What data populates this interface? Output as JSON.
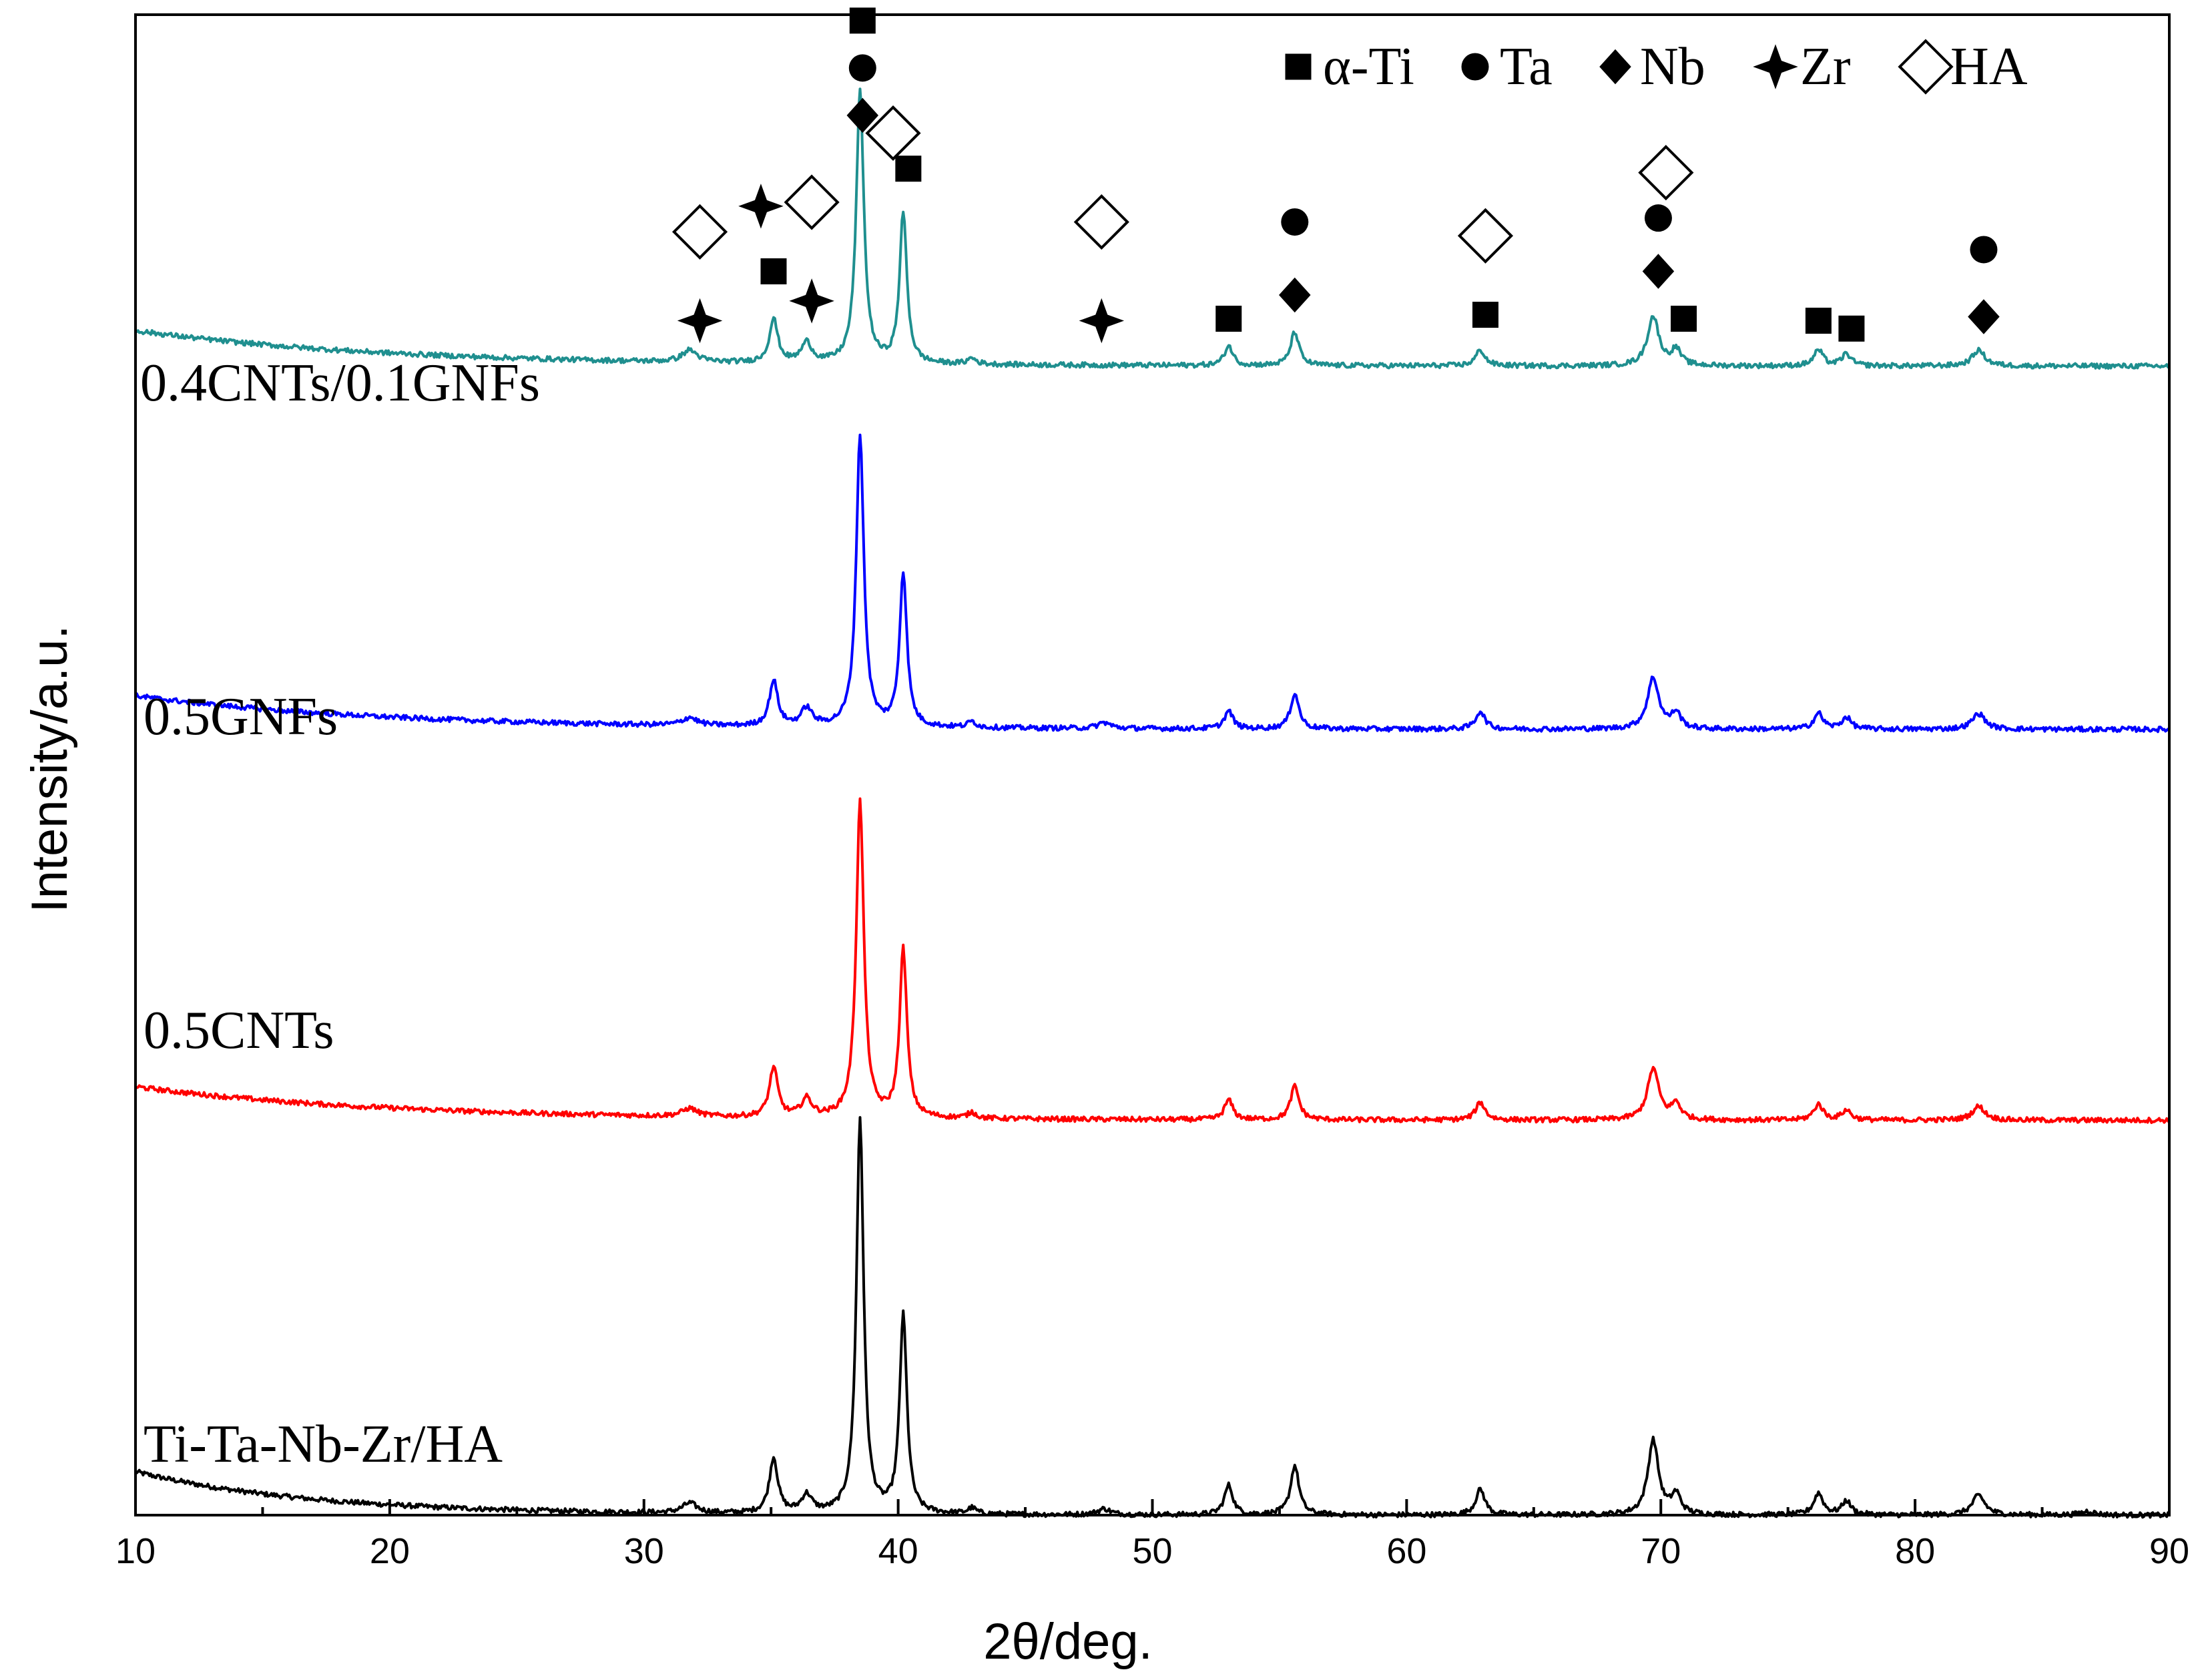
{
  "chart_data": {
    "type": "line",
    "title": "",
    "xlabel": "2θ/deg.",
    "ylabel": "Intensity/a.u.",
    "xlim": [
      10,
      90
    ],
    "ylim": [
      0,
      7.6
    ],
    "x_ticks": [
      10,
      20,
      30,
      40,
      50,
      60,
      70,
      80,
      90
    ],
    "y_ticks_shown": false,
    "legend_position": "top-right",
    "legend": [
      {
        "symbol": "square",
        "label": "α-Ti"
      },
      {
        "symbol": "circle",
        "label": "Ta"
      },
      {
        "symbol": "diamond",
        "label": "Nb"
      },
      {
        "symbol": "star4",
        "label": "Zr"
      },
      {
        "symbol": "open-diamond",
        "label": "HA"
      }
    ],
    "series": [
      {
        "name": "Ti-Ta-Nb-Zr/HA",
        "color": "#000000",
        "offset": 0.0,
        "baseline": {
          "start": 0.22,
          "end": 0.0,
          "decay": 7
        },
        "peaks": [
          {
            "x": 31.8,
            "h": 0.05,
            "w": 0.35
          },
          {
            "x": 35.1,
            "h": 0.28,
            "w": 0.2
          },
          {
            "x": 36.4,
            "h": 0.09,
            "w": 0.25
          },
          {
            "x": 38.5,
            "h": 2.0,
            "w": 0.17
          },
          {
            "x": 40.2,
            "h": 1.0,
            "w": 0.17
          },
          {
            "x": 42.9,
            "h": 0.03,
            "w": 0.2
          },
          {
            "x": 48.1,
            "h": 0.03,
            "w": 0.3
          },
          {
            "x": 53.0,
            "h": 0.15,
            "w": 0.2
          },
          {
            "x": 55.6,
            "h": 0.25,
            "w": 0.2
          },
          {
            "x": 62.9,
            "h": 0.13,
            "w": 0.22
          },
          {
            "x": 69.7,
            "h": 0.38,
            "w": 0.25
          },
          {
            "x": 70.6,
            "h": 0.1,
            "w": 0.22
          },
          {
            "x": 76.2,
            "h": 0.11,
            "w": 0.22
          },
          {
            "x": 77.3,
            "h": 0.07,
            "w": 0.22
          },
          {
            "x": 82.5,
            "h": 0.1,
            "w": 0.3
          },
          {
            "x": 86.8,
            "h": 0.02,
            "w": 0.3
          }
        ]
      },
      {
        "name": "0.5CNTs",
        "color": "#ff0000",
        "offset": 2.0,
        "baseline": {
          "start": 0.17,
          "end": 0.0,
          "decay": 10
        },
        "peaks": [
          {
            "x": 31.8,
            "h": 0.04,
            "w": 0.35
          },
          {
            "x": 35.1,
            "h": 0.25,
            "w": 0.2
          },
          {
            "x": 36.4,
            "h": 0.09,
            "w": 0.25
          },
          {
            "x": 38.5,
            "h": 1.6,
            "w": 0.18
          },
          {
            "x": 40.2,
            "h": 0.85,
            "w": 0.17
          },
          {
            "x": 42.9,
            "h": 0.03,
            "w": 0.2
          },
          {
            "x": 53.0,
            "h": 0.1,
            "w": 0.2
          },
          {
            "x": 55.6,
            "h": 0.17,
            "w": 0.2
          },
          {
            "x": 62.9,
            "h": 0.09,
            "w": 0.22
          },
          {
            "x": 69.7,
            "h": 0.26,
            "w": 0.27
          },
          {
            "x": 70.6,
            "h": 0.08,
            "w": 0.22
          },
          {
            "x": 76.2,
            "h": 0.08,
            "w": 0.22
          },
          {
            "x": 77.3,
            "h": 0.05,
            "w": 0.22
          },
          {
            "x": 82.5,
            "h": 0.07,
            "w": 0.3
          }
        ]
      },
      {
        "name": "0.5GNFs",
        "color": "#0000ff",
        "offset": 3.98,
        "baseline": {
          "start": 0.17,
          "end": 0.0,
          "decay": 10
        },
        "peaks": [
          {
            "x": 31.8,
            "h": 0.04,
            "w": 0.35
          },
          {
            "x": 35.1,
            "h": 0.23,
            "w": 0.2
          },
          {
            "x": 36.4,
            "h": 0.09,
            "w": 0.25
          },
          {
            "x": 38.5,
            "h": 1.48,
            "w": 0.18
          },
          {
            "x": 40.2,
            "h": 0.78,
            "w": 0.17
          },
          {
            "x": 42.9,
            "h": 0.03,
            "w": 0.2
          },
          {
            "x": 48.1,
            "h": 0.03,
            "w": 0.3
          },
          {
            "x": 53.0,
            "h": 0.09,
            "w": 0.2
          },
          {
            "x": 55.6,
            "h": 0.18,
            "w": 0.2
          },
          {
            "x": 62.9,
            "h": 0.09,
            "w": 0.22
          },
          {
            "x": 69.7,
            "h": 0.26,
            "w": 0.27
          },
          {
            "x": 70.6,
            "h": 0.08,
            "w": 0.22
          },
          {
            "x": 76.2,
            "h": 0.08,
            "w": 0.22
          },
          {
            "x": 77.3,
            "h": 0.06,
            "w": 0.22
          },
          {
            "x": 82.5,
            "h": 0.08,
            "w": 0.3
          }
        ]
      },
      {
        "name": "0.4CNTs/0.1GNFs",
        "color": "#1f8f8f",
        "offset": 5.82,
        "baseline": {
          "start": 0.18,
          "end": 0.0,
          "decay": 10
        },
        "peaks": [
          {
            "x": 31.8,
            "h": 0.06,
            "w": 0.35
          },
          {
            "x": 35.1,
            "h": 0.22,
            "w": 0.2
          },
          {
            "x": 36.4,
            "h": 0.1,
            "w": 0.25
          },
          {
            "x": 38.5,
            "h": 1.38,
            "w": 0.18
          },
          {
            "x": 40.2,
            "h": 0.76,
            "w": 0.17
          },
          {
            "x": 42.9,
            "h": 0.03,
            "w": 0.2
          },
          {
            "x": 53.0,
            "h": 0.1,
            "w": 0.2
          },
          {
            "x": 55.6,
            "h": 0.17,
            "w": 0.2
          },
          {
            "x": 62.9,
            "h": 0.08,
            "w": 0.22
          },
          {
            "x": 69.7,
            "h": 0.25,
            "w": 0.27
          },
          {
            "x": 70.6,
            "h": 0.08,
            "w": 0.22
          },
          {
            "x": 76.2,
            "h": 0.08,
            "w": 0.22
          },
          {
            "x": 77.3,
            "h": 0.06,
            "w": 0.22
          },
          {
            "x": 82.5,
            "h": 0.08,
            "w": 0.3
          }
        ]
      }
    ],
    "peak_markers": [
      {
        "x": 32.2,
        "y": 6.05,
        "symbol": "star4"
      },
      {
        "x": 32.2,
        "y": 6.5,
        "symbol": "open-diamond"
      },
      {
        "x": 34.6,
        "y": 6.63,
        "symbol": "star4"
      },
      {
        "x": 35.1,
        "y": 6.3,
        "symbol": "square"
      },
      {
        "x": 36.6,
        "y": 6.15,
        "symbol": "star4"
      },
      {
        "x": 36.6,
        "y": 6.65,
        "symbol": "open-diamond"
      },
      {
        "x": 38.6,
        "y": 7.57,
        "symbol": "square"
      },
      {
        "x": 38.6,
        "y": 7.33,
        "symbol": "circle"
      },
      {
        "x": 38.6,
        "y": 7.09,
        "symbol": "diamond"
      },
      {
        "x": 39.8,
        "y": 7.0,
        "symbol": "open-diamond"
      },
      {
        "x": 40.4,
        "y": 6.82,
        "symbol": "square"
      },
      {
        "x": 48.0,
        "y": 6.05,
        "symbol": "star4"
      },
      {
        "x": 48.0,
        "y": 6.55,
        "symbol": "open-diamond"
      },
      {
        "x": 53.0,
        "y": 6.06,
        "symbol": "square"
      },
      {
        "x": 55.6,
        "y": 6.18,
        "symbol": "diamond"
      },
      {
        "x": 55.6,
        "y": 6.55,
        "symbol": "circle"
      },
      {
        "x": 63.1,
        "y": 6.08,
        "symbol": "square"
      },
      {
        "x": 63.1,
        "y": 6.48,
        "symbol": "open-diamond"
      },
      {
        "x": 69.9,
        "y": 6.3,
        "symbol": "diamond"
      },
      {
        "x": 69.9,
        "y": 6.57,
        "symbol": "circle"
      },
      {
        "x": 70.2,
        "y": 6.8,
        "symbol": "open-diamond"
      },
      {
        "x": 70.9,
        "y": 6.06,
        "symbol": "square"
      },
      {
        "x": 76.2,
        "y": 6.05,
        "symbol": "square"
      },
      {
        "x": 77.5,
        "y": 6.01,
        "symbol": "square"
      },
      {
        "x": 82.7,
        "y": 6.07,
        "symbol": "diamond"
      },
      {
        "x": 82.7,
        "y": 6.41,
        "symbol": "circle"
      }
    ]
  }
}
